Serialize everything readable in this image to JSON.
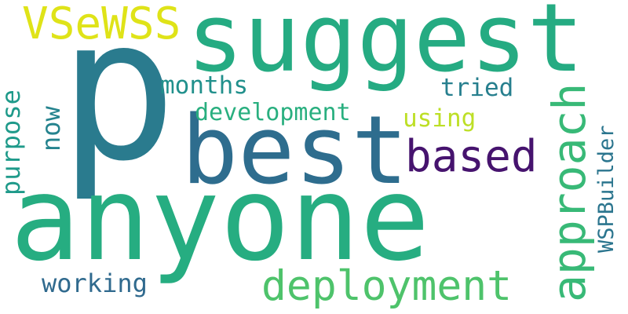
{
  "words": {
    "p": "p",
    "anyone": "anyone",
    "suggest": "suggest",
    "best": "best",
    "vsewss": "VSeWSS",
    "based": "based",
    "approach": "approach",
    "deployment": "deployment",
    "development": "development",
    "months": "months",
    "tried": "tried",
    "using": "using",
    "now": "now",
    "purpose": "purpose",
    "wspbuilder": "WSPBuilder",
    "working": "working"
  },
  "colors": {
    "p": "#2a7b8e",
    "anyone": "#26ad81",
    "suggest": "#25ab82",
    "best": "#2e6d8e",
    "vsewss": "#dfe318",
    "based": "#46136e",
    "approach": "#38b977",
    "deployment": "#4ec36b",
    "development": "#29af7f",
    "months": "#21908c",
    "tried": "#277f8e",
    "using": "#bddf26",
    "now": "#25838e",
    "purpose": "#1f9a8a",
    "wspbuilder": "#2b758e",
    "working": "#306a8e"
  }
}
